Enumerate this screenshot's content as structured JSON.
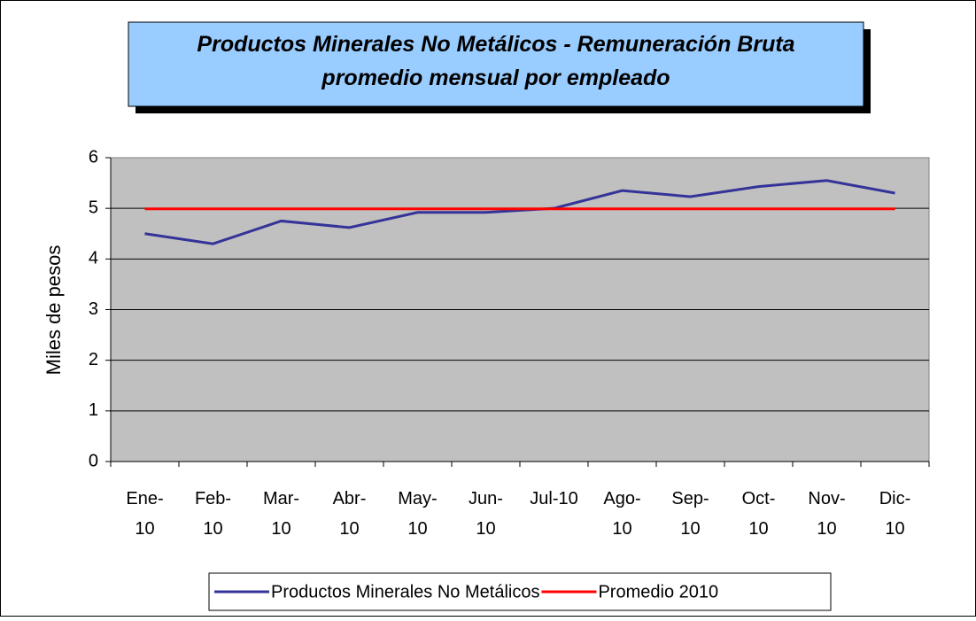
{
  "chart_data": {
    "type": "line",
    "title": "Productos Minerales No Metálicos - Remuneración Bruta promedio mensual por empleado",
    "ylabel": "Miles de pesos",
    "categories": [
      "Ene-10",
      "Feb-10",
      "Mar-10",
      "Abr-10",
      "May-10",
      "Jun-10",
      "Jul-10",
      "Ago-10",
      "Sep-10",
      "Oct-10",
      "Nov-10",
      "Dic-10"
    ],
    "series": [
      {
        "name": "Productos Minerales No Metálicos",
        "color": "#333399",
        "values": [
          4.5,
          4.3,
          4.75,
          4.62,
          4.92,
          4.92,
          5.0,
          5.35,
          5.23,
          5.43,
          5.55,
          5.3
        ]
      },
      {
        "name": "Promedio 2010",
        "color": "#ff0000",
        "values": [
          4.99,
          4.99,
          4.99,
          4.99,
          4.99,
          4.99,
          4.99,
          4.99,
          4.99,
          4.99,
          4.99,
          4.99
        ]
      }
    ],
    "ylim": [
      0,
      6
    ],
    "yticks": [
      0,
      1,
      2,
      3,
      4,
      5,
      6
    ],
    "grid": true,
    "legend": "bottom"
  }
}
